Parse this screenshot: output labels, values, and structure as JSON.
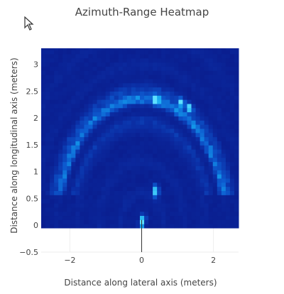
{
  "chart_data": {
    "type": "heatmap",
    "title": "Azimuth-Range Heatmap",
    "xlabel": "Distance along lateral axis (meters)",
    "ylabel": "Distance along longitudinal axis (meters)",
    "xlim": [
      -2.8,
      2.7
    ],
    "ylim": [
      -0.5,
      3.3
    ],
    "xticks": [
      {
        "v": -2,
        "label": "−2"
      },
      {
        "v": 0,
        "label": "0"
      },
      {
        "v": 2,
        "label": "2"
      }
    ],
    "yticks": [
      {
        "v": -0.5,
        "label": "−0.5"
      },
      {
        "v": 0,
        "label": "0"
      },
      {
        "v": 0.5,
        "label": "0.5"
      },
      {
        "v": 1,
        "label": "1"
      },
      {
        "v": 1.5,
        "label": "1.5"
      },
      {
        "v": 2,
        "label": "2"
      },
      {
        "v": 2.5,
        "label": "2.5"
      },
      {
        "v": 3,
        "label": "3"
      }
    ],
    "grid": true,
    "colorscale": [
      "#0a1a8a",
      "#0b2fa6",
      "#0d5bd0",
      "#15a7f0",
      "#5ee0ff"
    ],
    "heat_region": {
      "x": [
        -2.8,
        2.7
      ],
      "y": [
        -0.05,
        3.35
      ]
    },
    "sensor_line": {
      "x": 0,
      "y": [
        -0.5,
        0.1
      ]
    },
    "arcs": [
      {
        "center": [
          0,
          0
        ],
        "radius": 2.35,
        "intensity": 0.55
      },
      {
        "center": [
          0,
          0
        ],
        "radius": 2.55,
        "intensity": 0.3
      },
      {
        "center": [
          0,
          0
        ],
        "radius": 1.95,
        "intensity": 0.25
      }
    ],
    "hotspots": [
      {
        "x": 0.4,
        "y": 2.35,
        "v": 0.9
      },
      {
        "x": 1.1,
        "y": 2.3,
        "v": 0.85
      },
      {
        "x": 1.35,
        "y": 2.2,
        "v": 0.8
      },
      {
        "x": 0.4,
        "y": 0.7,
        "v": 0.7
      },
      {
        "x": 0.4,
        "y": 0.6,
        "v": 0.8
      },
      {
        "x": 0.0,
        "y": 0.05,
        "v": 1.0
      },
      {
        "x": 0.05,
        "y": 0.15,
        "v": 0.7
      }
    ]
  }
}
